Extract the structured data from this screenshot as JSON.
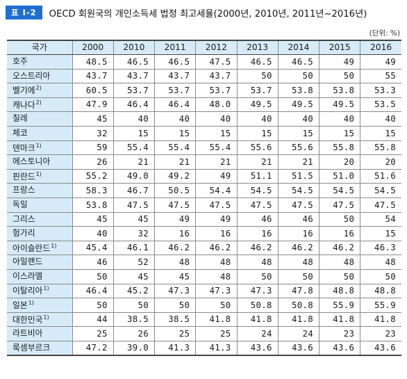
{
  "header": {
    "badge": "표 Ⅰ-2",
    "title": "OECD 회원국의 개인소득세 법정 최고세율(2000년, 2010년, 2011년~2016년)",
    "unit": "(단위: %)"
  },
  "table": {
    "columns": [
      "국가",
      "2000",
      "2010",
      "2011",
      "2012",
      "2013",
      "2014",
      "2015",
      "2016"
    ],
    "rows": [
      {
        "country": "호주",
        "note": "",
        "values": [
          "48.5",
          "46.5",
          "46.5",
          "47.5",
          "46.5",
          "46.5",
          "49",
          "49"
        ]
      },
      {
        "country": "오스트리아",
        "note": "",
        "values": [
          "43.7",
          "43.7",
          "43.7",
          "43.7",
          "50",
          "50",
          "50",
          "55"
        ]
      },
      {
        "country": "벨기에",
        "note": "2)",
        "values": [
          "60.5",
          "53.7",
          "53.7",
          "53.7",
          "53.7",
          "53.8",
          "53.8",
          "53.3"
        ]
      },
      {
        "country": "캐나다",
        "note": "2)",
        "values": [
          "47.9",
          "46.4",
          "46.4",
          "48.0",
          "49.5",
          "49.5",
          "49.5",
          "53.5"
        ]
      },
      {
        "country": "칠레",
        "note": "",
        "values": [
          "45",
          "40",
          "40",
          "40",
          "40",
          "40",
          "40",
          "40"
        ]
      },
      {
        "country": "체코",
        "note": "",
        "values": [
          "32",
          "15",
          "15",
          "15",
          "15",
          "15",
          "15",
          "15"
        ]
      },
      {
        "country": "덴마크",
        "note": "1)",
        "values": [
          "59",
          "55.4",
          "55.4",
          "55.4",
          "55.6",
          "55.6",
          "55.8",
          "55.8"
        ]
      },
      {
        "country": "에스토니아",
        "note": "",
        "values": [
          "26",
          "21",
          "21",
          "21",
          "21",
          "21",
          "20",
          "20"
        ]
      },
      {
        "country": "핀란드",
        "note": "1)",
        "values": [
          "55.2",
          "49.0",
          "49.2",
          "49",
          "51.1",
          "51.5",
          "51.0",
          "51.6"
        ]
      },
      {
        "country": "프랑스",
        "note": "",
        "values": [
          "58.3",
          "46.7",
          "50.5",
          "54.4",
          "54.5",
          "54.5",
          "54.5",
          "54.5"
        ]
      },
      {
        "country": "독일",
        "note": "",
        "values": [
          "53.8",
          "47.5",
          "47.5",
          "47.5",
          "47.5",
          "47.5",
          "47.5",
          "47.5"
        ]
      },
      {
        "country": "그리스",
        "note": "",
        "values": [
          "45",
          "45",
          "49",
          "49",
          "46",
          "46",
          "50",
          "54"
        ]
      },
      {
        "country": "헝가리",
        "note": "",
        "values": [
          "40",
          "32",
          "16",
          "16",
          "16",
          "16",
          "16",
          "15"
        ]
      },
      {
        "country": "아이슬란드",
        "note": "1)",
        "values": [
          "45.4",
          "46.1",
          "46.2",
          "46.2",
          "46.2",
          "46.2",
          "46.2",
          "46.3"
        ]
      },
      {
        "country": "아일랜드",
        "note": "",
        "values": [
          "46",
          "52",
          "48",
          "48",
          "48",
          "48",
          "48",
          "48"
        ]
      },
      {
        "country": "이스라엘",
        "note": "",
        "values": [
          "50",
          "45",
          "45",
          "48",
          "50",
          "50",
          "50",
          "50"
        ]
      },
      {
        "country": "이탈리아",
        "note": "1)",
        "values": [
          "46.4",
          "45.2",
          "47.3",
          "47.3",
          "47.3",
          "47.8",
          "48.8",
          "48.8"
        ]
      },
      {
        "country": "일본",
        "note": "1)",
        "values": [
          "50",
          "50",
          "50",
          "50",
          "50.8",
          "50.8",
          "55.9",
          "55.9"
        ]
      },
      {
        "country": "대한민국",
        "note": "1)",
        "values": [
          "44",
          "38.5",
          "38.5",
          "41.8",
          "41.8",
          "41.8",
          "41.8",
          "41.8"
        ]
      },
      {
        "country": "라트비아",
        "note": "",
        "values": [
          "25",
          "26",
          "25",
          "25",
          "24",
          "24",
          "23",
          "23"
        ]
      },
      {
        "country": "룩셈부르크",
        "note": "",
        "values": [
          "47.2",
          "39.0",
          "41.3",
          "41.3",
          "43.6",
          "43.6",
          "43.6",
          "43.6"
        ]
      }
    ]
  }
}
